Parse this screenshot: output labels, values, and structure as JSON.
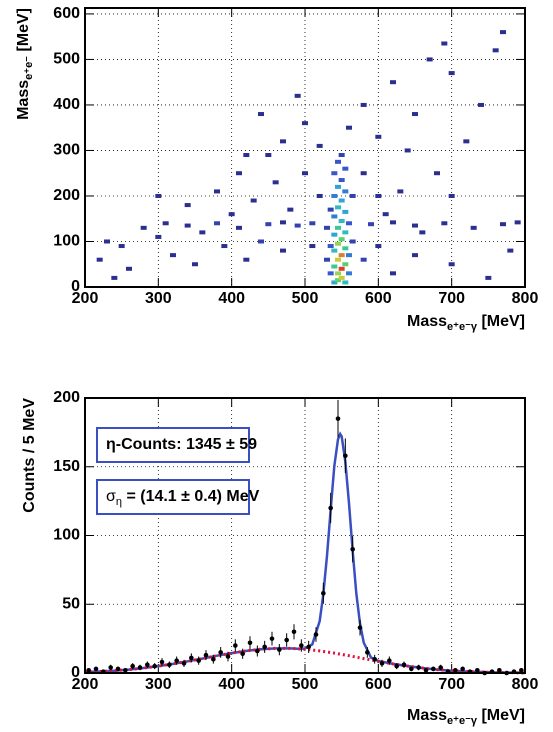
{
  "chart_data": [
    {
      "type": "histogram2d",
      "x_label": {
        "text": "Mass",
        "subscript": "e⁺e⁻γ",
        "unit": " [MeV]"
      },
      "y_label": {
        "text": "Mass",
        "subscript": "e⁺e⁻",
        "unit": " [MeV]"
      },
      "xlim": [
        200,
        800
      ],
      "xticks": [
        200,
        300,
        400,
        500,
        600,
        700,
        800
      ],
      "ylim": [
        0,
        613
      ],
      "yticks": [
        0,
        100,
        200,
        300,
        400,
        500,
        600
      ],
      "grid": true,
      "colormap": [
        "#2b2f8f",
        "#3a5bd0",
        "#2ab5d8",
        "#3fd07a",
        "#c8d83a",
        "#e53b2a"
      ],
      "x": [
        540,
        545,
        550,
        555,
        545,
        550,
        540,
        555,
        545,
        550,
        540,
        555,
        545,
        550,
        540,
        555,
        545,
        550,
        540,
        555,
        545,
        550,
        540,
        555,
        545,
        550,
        540,
        555,
        545,
        550,
        560,
        535,
        560,
        535,
        530,
        565,
        560,
        535,
        565,
        530,
        310,
        340,
        380,
        410,
        450,
        470,
        490,
        510,
        590,
        620,
        650,
        690,
        730,
        770,
        790,
        220,
        250,
        260,
        300,
        320,
        350,
        360,
        390,
        400,
        420,
        430,
        440,
        460,
        470,
        480,
        500,
        510,
        520,
        380,
        410,
        450,
        470,
        500,
        520,
        440,
        490,
        580,
        600,
        620,
        650,
        640,
        680,
        700,
        720,
        670,
        700,
        740,
        760,
        690,
        770,
        600,
        580,
        600,
        620,
        650,
        700,
        750,
        780,
        340,
        300,
        240,
        280,
        230,
        420,
        560,
        580,
        610,
        630,
        660
      ],
      "y": [
        10,
        15,
        20,
        10,
        30,
        40,
        45,
        50,
        60,
        70,
        80,
        85,
        95,
        105,
        115,
        120,
        130,
        145,
        155,
        165,
        175,
        190,
        200,
        210,
        220,
        235,
        250,
        260,
        275,
        290,
        30,
        30,
        70,
        90,
        60,
        100,
        140,
        170,
        200,
        130,
        140,
        135,
        140,
        130,
        138,
        142,
        135,
        140,
        138,
        142,
        135,
        140,
        130,
        138,
        142,
        60,
        90,
        40,
        110,
        70,
        50,
        120,
        90,
        160,
        60,
        190,
        100,
        230,
        80,
        170,
        250,
        90,
        200,
        210,
        250,
        290,
        320,
        360,
        310,
        380,
        420,
        400,
        330,
        450,
        380,
        300,
        250,
        200,
        320,
        500,
        470,
        400,
        520,
        535,
        560,
        200,
        60,
        90,
        30,
        70,
        50,
        20,
        80,
        180,
        200,
        20,
        130,
        100,
        290,
        350,
        250,
        160,
        210,
        120
      ],
      "counts": [
        5,
        8,
        10,
        6,
        9,
        12,
        7,
        8,
        10,
        11,
        6,
        7,
        9,
        8,
        5,
        6,
        7,
        6,
        4,
        5,
        6,
        5,
        4,
        4,
        5,
        3,
        3,
        3,
        3,
        2,
        4,
        3,
        4,
        3,
        2,
        2,
        3,
        2,
        2,
        2,
        1,
        1,
        2,
        1,
        2,
        1,
        2,
        2,
        2,
        1,
        1,
        1,
        1,
        1,
        1,
        1,
        1,
        1,
        1,
        1,
        1,
        1,
        1,
        1,
        1,
        1,
        2,
        1,
        1,
        1,
        1,
        1,
        1,
        1,
        1,
        1,
        1,
        1,
        1,
        1,
        1,
        1,
        1,
        1,
        1,
        1,
        1,
        1,
        1,
        1,
        1,
        1,
        1,
        1,
        1,
        1,
        2,
        1,
        1,
        1,
        1,
        1,
        1,
        1,
        1,
        1,
        1,
        1,
        1,
        1,
        1,
        1,
        1,
        1
      ]
    },
    {
      "type": "errorbar",
      "x_label": {
        "text": "Mass",
        "subscript": "e⁺e⁻γ",
        "unit": " [MeV]"
      },
      "y_label": {
        "text": "Counts / 5 MeV"
      },
      "xlim": [
        200,
        800
      ],
      "xticks": [
        200,
        300,
        400,
        500,
        600,
        700,
        800
      ],
      "ylim": [
        0,
        200
      ],
      "yticks": [
        0,
        50,
        100,
        150,
        200
      ],
      "grid": true,
      "annotations": [
        {
          "text": "η-Counts: 1345 ± 59"
        },
        {
          "symbol": "σ",
          "subscript": "η",
          "text": " = (14.1 ± 0.4) MeV"
        }
      ],
      "series": [
        {
          "kind": "points",
          "color": "#000000",
          "x": [
            205,
            215,
            225,
            235,
            245,
            255,
            265,
            275,
            285,
            295,
            305,
            315,
            325,
            335,
            345,
            355,
            365,
            375,
            385,
            395,
            405,
            415,
            425,
            435,
            445,
            455,
            465,
            475,
            485,
            495,
            505,
            515,
            525,
            535,
            545,
            555,
            565,
            575,
            585,
            595,
            605,
            615,
            625,
            635,
            645,
            655,
            665,
            675,
            685,
            695,
            705,
            715,
            725,
            735,
            745,
            755,
            765,
            775,
            785,
            795
          ],
          "values": [
            2,
            3,
            1,
            4,
            3,
            2,
            5,
            4,
            6,
            5,
            8,
            6,
            9,
            7,
            11,
            9,
            13,
            10,
            15,
            12,
            20,
            14,
            22,
            16,
            19,
            25,
            17,
            24,
            30,
            20,
            19,
            28,
            58,
            120,
            185,
            158,
            90,
            33,
            15,
            10,
            7,
            9,
            5,
            6,
            3,
            4,
            2,
            3,
            4,
            1,
            2,
            3,
            1,
            2,
            0,
            1,
            2,
            0,
            1,
            2
          ],
          "errors": [
            1.4,
            1.7,
            1,
            2,
            1.7,
            1.4,
            2.2,
            2,
            2.4,
            2.2,
            2.8,
            2.4,
            3,
            2.6,
            3.3,
            3,
            3.6,
            3.2,
            3.9,
            3.5,
            4.5,
            3.7,
            4.7,
            4,
            4.4,
            5,
            4.1,
            4.9,
            5.5,
            4.5,
            4.4,
            5.3,
            7.6,
            11,
            13.6,
            12.6,
            9.5,
            5.7,
            3.9,
            3.2,
            2.6,
            3,
            2.2,
            2.4,
            1.7,
            2,
            1.4,
            1.7,
            2,
            1,
            1.4,
            1.7,
            1,
            1.4,
            0,
            1,
            1.4,
            0,
            1,
            1.4
          ]
        },
        {
          "kind": "line",
          "color": "#3a4fc0",
          "style": "solid",
          "x": [
            200,
            220,
            240,
            260,
            280,
            300,
            320,
            340,
            360,
            380,
            400,
            420,
            440,
            460,
            480,
            490,
            500,
            510,
            520,
            525,
            530,
            535,
            540,
            545,
            548,
            550,
            555,
            560,
            565,
            570,
            575,
            580,
            590,
            600,
            620,
            640,
            660,
            680,
            700,
            720,
            740,
            760,
            780,
            800
          ],
          "values": [
            0.7,
            1.1,
            1.7,
            2.5,
            3.6,
            5.0,
            6.6,
            8.5,
            10.5,
            12.6,
            14.5,
            16.1,
            17.3,
            17.9,
            17.9,
            17.7,
            17.8,
            20.8,
            37.8,
            57.2,
            85.3,
            118.9,
            150.5,
            170,
            173.8,
            172,
            154,
            123.4,
            88.5,
            58,
            36,
            22.2,
            11.3,
            8.7,
            6.6,
            5.0,
            3.6,
            2.5,
            1.7,
            1.1,
            0.7,
            0.4,
            0.3,
            0.1
          ]
        },
        {
          "kind": "line",
          "color": "#e0103a",
          "style": "dotted",
          "x": [
            200,
            220,
            240,
            260,
            280,
            300,
            320,
            340,
            360,
            380,
            400,
            420,
            440,
            460,
            480,
            500,
            520,
            540,
            560,
            580,
            600,
            620,
            640,
            660,
            680,
            700,
            720,
            740,
            760,
            780,
            800
          ],
          "values": [
            0.7,
            1.1,
            1.7,
            2.5,
            3.6,
            5.0,
            6.6,
            8.5,
            10.5,
            12.6,
            14.5,
            16.1,
            17.3,
            17.9,
            17.9,
            17.3,
            16.1,
            14.5,
            12.6,
            10.5,
            8.5,
            6.6,
            5.0,
            3.6,
            2.5,
            1.7,
            1.1,
            0.7,
            0.4,
            0.3,
            0.1
          ]
        }
      ]
    }
  ]
}
